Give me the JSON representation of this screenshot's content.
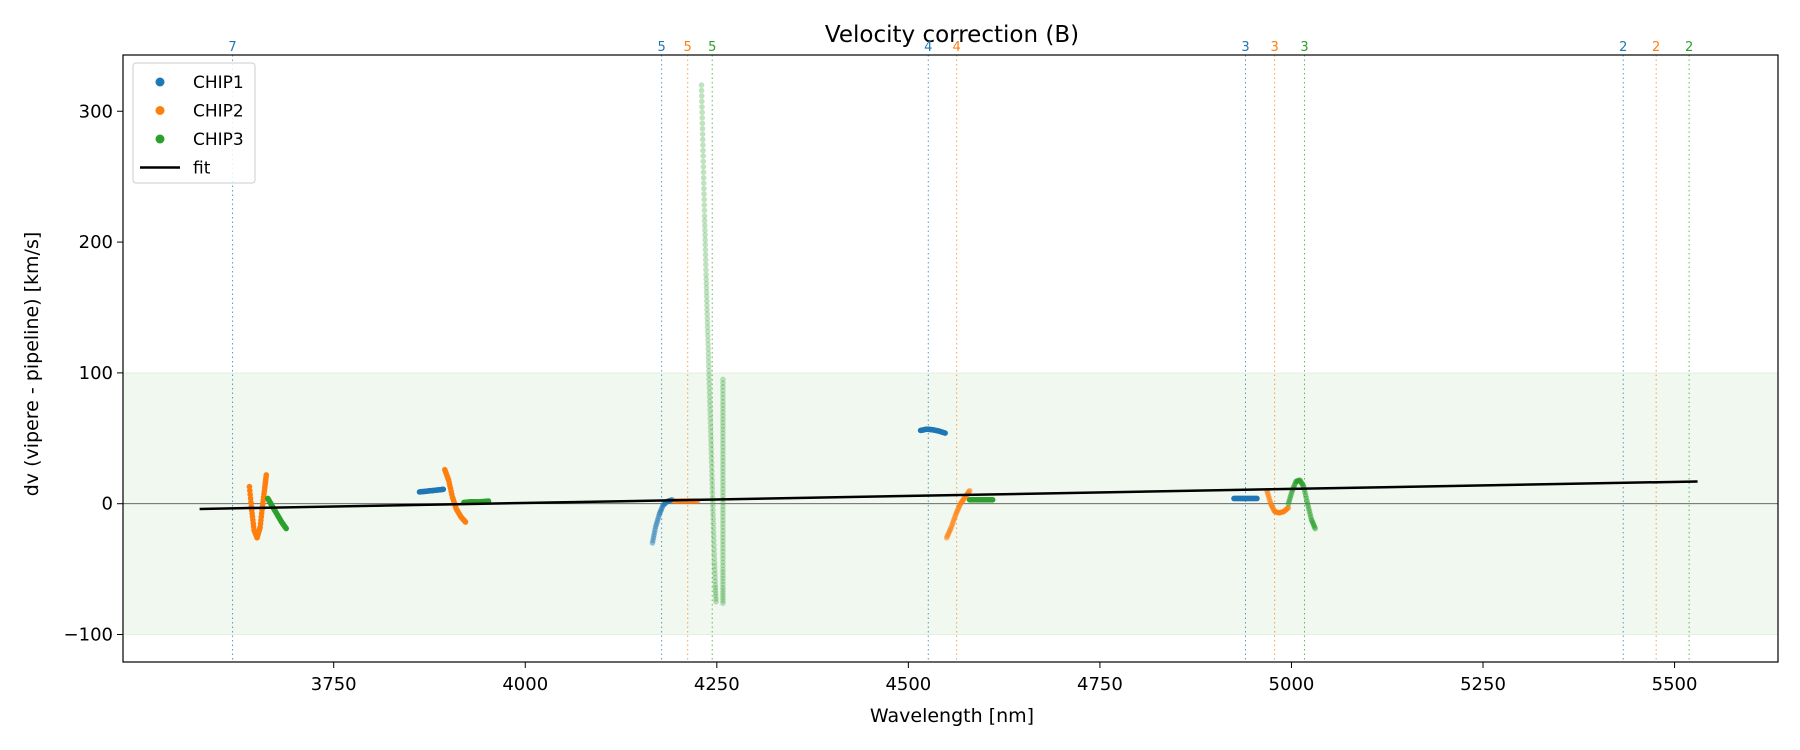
{
  "chart_data": {
    "type": "scatter",
    "title": "Velocity correction (B)",
    "xlabel": "Wavelength [nm]",
    "ylabel": "dv (vipere - pipeline) [km/s]",
    "xlim": [
      3475,
      5635
    ],
    "ylim": [
      -121,
      343
    ],
    "xticks": [
      3750,
      4000,
      4250,
      4500,
      4750,
      5000,
      5250,
      5500
    ],
    "xtick_labels": [
      "3750",
      "4000",
      "4250",
      "4500",
      "4750",
      "5000",
      "5250",
      "5500"
    ],
    "yticks": [
      -100,
      0,
      100,
      200,
      300
    ],
    "ytick_labels": [
      "−100",
      "0",
      "100",
      "200",
      "300"
    ],
    "band": [
      -100,
      100
    ],
    "zero_line": 0,
    "legend": {
      "placement": "top-left",
      "entries": [
        {
          "label": "CHIP1",
          "kind": "marker",
          "color": "#1f77b4"
        },
        {
          "label": "CHIP2",
          "kind": "marker",
          "color": "#ff7f0e"
        },
        {
          "label": "CHIP3",
          "kind": "marker",
          "color": "#2ca02c"
        },
        {
          "label": "fit",
          "kind": "line",
          "color": "#000000"
        }
      ]
    },
    "colors": {
      "chip1": "#1f77b4",
      "chip2": "#ff7f0e",
      "chip3": "#2ca02c",
      "fit": "#000000",
      "band": "#2ca02c"
    },
    "order_markers": [
      {
        "x": 3618,
        "label": "7",
        "chip": "chip1"
      },
      {
        "x": 4178,
        "label": "5",
        "chip": "chip1"
      },
      {
        "x": 4212,
        "label": "5",
        "chip": "chip2"
      },
      {
        "x": 4244,
        "label": "5",
        "chip": "chip3"
      },
      {
        "x": 4526,
        "label": "4",
        "chip": "chip1"
      },
      {
        "x": 4563,
        "label": "4",
        "chip": "chip2"
      },
      {
        "x": 4940,
        "label": "3",
        "chip": "chip1"
      },
      {
        "x": 4978,
        "label": "3",
        "chip": "chip2"
      },
      {
        "x": 5017,
        "label": "3",
        "chip": "chip3"
      },
      {
        "x": 5433,
        "label": "2",
        "chip": "chip1"
      },
      {
        "x": 5476,
        "label": "2",
        "chip": "chip2"
      },
      {
        "x": 5519,
        "label": "2",
        "chip": "chip3"
      }
    ],
    "fit": {
      "x": [
        3575,
        5530
      ],
      "y": [
        -4,
        17
      ]
    },
    "series": [
      {
        "name": "CHIP1",
        "chip": "chip1",
        "opacity": 1.0,
        "segments": [
          {
            "x": [
              3862,
              3870,
              3878,
              3886,
              3893
            ],
            "y": [
              9,
              9.5,
              10,
              10.5,
              11
            ]
          },
          {
            "x": [
              4516,
              4524,
              4532,
              4540,
              4548
            ],
            "y": [
              56,
              57,
              56.5,
              55.5,
              54
            ]
          },
          {
            "x": [
              4925,
              4935,
              4945,
              4955
            ],
            "y": [
              4,
              4,
              4,
              4
            ]
          }
        ]
      },
      {
        "name": "CHIP1",
        "chip": "chip1",
        "opacity": 0.45,
        "segments": [
          {
            "x": [
              4166,
              4170,
              4175,
              4180,
              4186,
              4192
            ],
            "y": [
              -30,
              -18,
              -8,
              -1,
              2,
              3
            ]
          }
        ]
      },
      {
        "name": "CHIP2",
        "chip": "chip2",
        "opacity": 1.0,
        "segments": [
          {
            "x": [
              3640,
              3643,
              3646,
              3650,
              3654,
              3657,
              3660,
              3662
            ],
            "y": [
              13,
              -5,
              -20,
              -26,
              -18,
              -2,
              12,
              22
            ]
          },
          {
            "x": [
              3895,
              3900,
              3905,
              3910,
              3916,
              3922
            ],
            "y": [
              26,
              18,
              5,
              -4,
              -10,
              -14
            ]
          }
        ]
      },
      {
        "name": "CHIP2",
        "chip": "chip2",
        "opacity": 0.55,
        "segments": [
          {
            "x": [
              4195,
              4205,
              4215,
              4225
            ],
            "y": [
              2,
              2,
              2,
              2
            ]
          },
          {
            "x": [
              4550,
              4556,
              4562,
              4568,
              4574,
              4580
            ],
            "y": [
              -26,
              -18,
              -8,
              0,
              5,
              10
            ]
          },
          {
            "x": [
              4968,
              4973,
              4978,
              4984,
              4990,
              4996
            ],
            "y": [
              10,
              0,
              -6,
              -7,
              -6,
              -3
            ]
          }
        ]
      },
      {
        "name": "CHIP3",
        "chip": "chip3",
        "opacity": 1.0,
        "segments": [
          {
            "x": [
              3664,
              3670,
              3676,
              3682,
              3688
            ],
            "y": [
              4,
              -2,
              -8,
              -14,
              -19
            ]
          },
          {
            "x": [
              3920,
              3930,
              3940,
              3952
            ],
            "y": [
              1,
              1.5,
              1.5,
              2
            ]
          },
          {
            "x": [
              4580,
              4590,
              4600,
              4610
            ],
            "y": [
              3,
              3,
              3,
              3
            ]
          }
        ]
      },
      {
        "name": "CHIP3",
        "chip": "chip3",
        "opacity": 0.5,
        "segments": [
          {
            "x": [
              4996,
              5001,
              5006,
              5011,
              5016,
              5021,
              5026,
              5031
            ],
            "y": [
              0,
              10,
              17,
              18,
              13,
              0,
              -12,
              -19
            ]
          }
        ]
      },
      {
        "name": "CHIP3",
        "chip": "chip3",
        "opacity": 0.3,
        "segments": [
          {
            "x": [
              4230,
              4231,
              4232,
              4233,
              4234,
              4235,
              4236,
              4237,
              4238,
              4239,
              4240,
              4241,
              4242,
              4243,
              4244,
              4245,
              4246,
              4247,
              4248,
              4249
            ],
            "y": [
              320,
              295,
              270,
              245,
              220,
              198,
              175,
              155,
              135,
              115,
              95,
              75,
              55,
              35,
              15,
              -5,
              -25,
              -45,
              -62,
              -75
            ]
          },
          {
            "x": [
              4258,
              4258,
              4258,
              4258,
              4258,
              4258,
              4258,
              4258,
              4258,
              4258,
              4258,
              4258
            ],
            "y": [
              95,
              78,
              62,
              46,
              30,
              14,
              -2,
              -18,
              -34,
              -50,
              -64,
              -76
            ]
          }
        ]
      }
    ]
  }
}
